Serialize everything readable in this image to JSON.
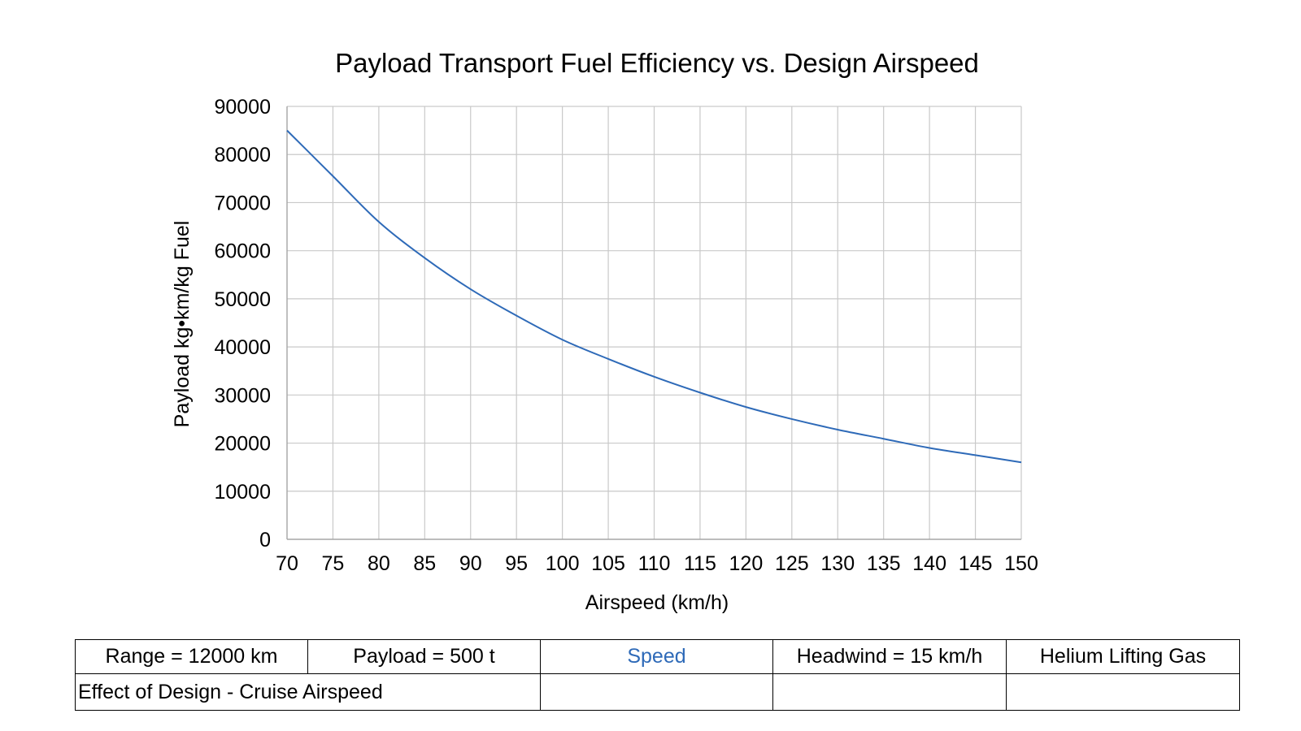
{
  "chart_data": {
    "type": "line",
    "title": "Payload Transport Fuel Efficiency vs. Design Airspeed",
    "xlabel": "Airspeed (km/h)",
    "ylabel": "Payload kg•km/kg Fuel",
    "xlim": [
      70,
      150
    ],
    "ylim": [
      0,
      90000
    ],
    "x_ticks": [
      70,
      75,
      80,
      85,
      90,
      95,
      100,
      105,
      110,
      115,
      120,
      125,
      130,
      135,
      140,
      145,
      150
    ],
    "y_ticks": [
      0,
      10000,
      20000,
      30000,
      40000,
      50000,
      60000,
      70000,
      80000,
      90000
    ],
    "grid": true,
    "legend": "none",
    "series": [
      {
        "color": "#2e6ab8",
        "x": [
          70,
          75,
          80,
          85,
          90,
          95,
          100,
          105,
          110,
          115,
          120,
          125,
          130,
          135,
          140,
          145,
          150
        ],
        "y": [
          85000,
          75500,
          66000,
          58500,
          52000,
          46500,
          41500,
          37500,
          33800,
          30500,
          27500,
          25000,
          22800,
          20900,
          19000,
          17500,
          16000
        ]
      }
    ]
  },
  "info_table": {
    "row1": [
      "Range = 12000 km",
      "Payload = 500 t",
      "Speed",
      "Headwind = 15 km/h",
      "Helium Lifting Gas"
    ],
    "row2": [
      "Effect of Design - Cruise Airspeed",
      "",
      "",
      ""
    ],
    "highlight_color": "#2e6ab8"
  }
}
